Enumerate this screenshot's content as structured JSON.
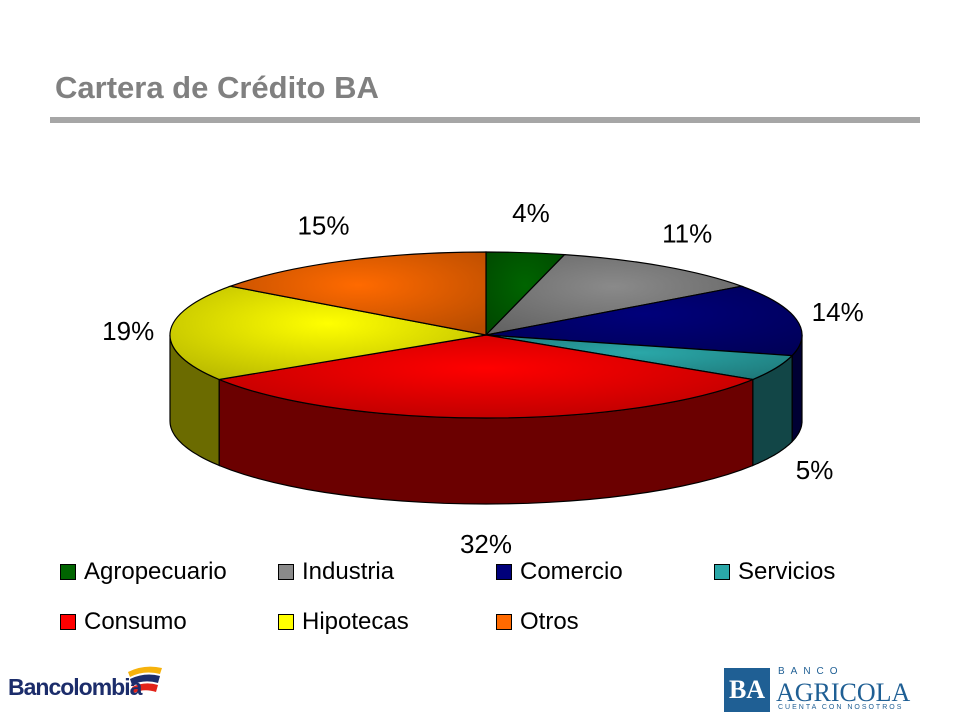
{
  "title": "Cartera de Crédito BA",
  "chart_data": {
    "type": "pie",
    "title": "",
    "categories": [
      "Agropecuario",
      "Industria",
      "Comercio",
      "Servicios",
      "Consumo",
      "Hipotecas",
      "Otros"
    ],
    "values": [
      4,
      11,
      14,
      5,
      32,
      19,
      15
    ],
    "labels": [
      "4%",
      "11%",
      "14%",
      "5%",
      "32%",
      "19%",
      "15%"
    ],
    "colors": [
      "#006400",
      "#8a8a8a",
      "#00007a",
      "#2aa7a8",
      "#ff0000",
      "#ffff00",
      "#ff6a00"
    ],
    "style": "3d",
    "legend_position": "bottom"
  },
  "logos": {
    "left": "Bancolombia",
    "right_banco": "BANCO",
    "right_name": "AGRICOLA",
    "right_mark": "BA",
    "right_tagline": "CUENTA CON NOSOTROS"
  }
}
